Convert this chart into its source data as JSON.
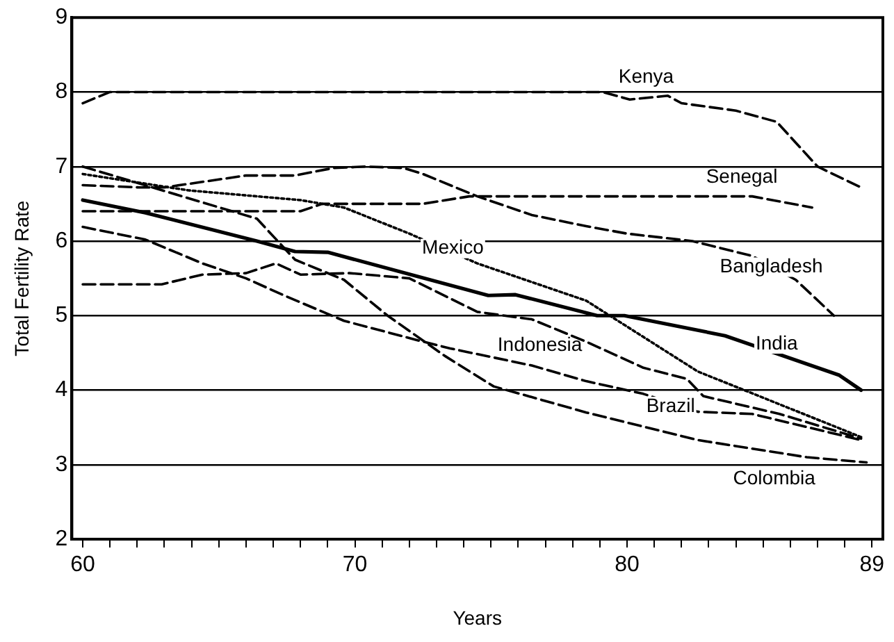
{
  "chart_data": {
    "type": "line",
    "xlabel": "Years",
    "ylabel": "Total Fertility Rate",
    "xlim": [
      59.6,
      89.4
    ],
    "ylim": [
      2,
      9
    ],
    "xticks": [
      60,
      {
        "value": 61,
        "label": null
      },
      {
        "value": 62,
        "label": null
      },
      {
        "value": 63,
        "label": null
      },
      {
        "value": 64,
        "label": null
      },
      {
        "value": 65,
        "label": null
      },
      {
        "value": 66,
        "label": null
      },
      {
        "value": 67,
        "label": null
      },
      {
        "value": 68,
        "label": null
      },
      {
        "value": 69,
        "label": null
      },
      70,
      {
        "value": 71,
        "label": null
      },
      {
        "value": 72,
        "label": null
      },
      {
        "value": 73,
        "label": null
      },
      {
        "value": 74,
        "label": null
      },
      {
        "value": 75,
        "label": null
      },
      {
        "value": 76,
        "label": null
      },
      {
        "value": 77,
        "label": null
      },
      {
        "value": 78,
        "label": null
      },
      {
        "value": 79,
        "label": null
      },
      80,
      {
        "value": 81,
        "label": null
      },
      {
        "value": 82,
        "label": null
      },
      {
        "value": 83,
        "label": null
      },
      {
        "value": 84,
        "label": null
      },
      {
        "value": 85,
        "label": null
      },
      {
        "value": 86,
        "label": null
      },
      {
        "value": 87,
        "label": null
      },
      {
        "value": 88,
        "label": null
      },
      89
    ],
    "yticks": [
      2,
      3,
      4,
      5,
      6,
      7,
      8,
      9
    ],
    "grid": "y",
    "legend": false,
    "marker": "none",
    "series": [
      {
        "color": "#000000",
        "line_style": "dashed",
        "x": [
          60,
          61,
          70,
          75,
          79.1,
          80.1,
          81.5,
          82,
          84,
          85.5,
          87,
          88.6
        ],
        "values": [
          7.85,
          8.0,
          8.0,
          8.0,
          8.0,
          7.9,
          7.95,
          7.85,
          7.75,
          7.6,
          7.0,
          6.72
        ]
      },
      {
        "color": "#000000",
        "line_style": "dashed",
        "x": [
          60,
          68,
          68.8,
          72.5,
          74.2,
          84.6,
          86.8
        ],
        "values": [
          6.4,
          6.4,
          6.5,
          6.5,
          6.6,
          6.6,
          6.45
        ]
      },
      {
        "color": "#000000",
        "line_style": "dashed",
        "x": [
          60,
          62.1,
          63,
          64.5,
          66,
          67.8,
          69.2,
          70.4,
          71.8,
          72.5,
          74.5,
          76.5,
          78.5,
          80,
          82.4,
          84.6,
          86.2,
          87.6
        ],
        "values": [
          6.75,
          6.72,
          6.72,
          6.8,
          6.88,
          6.88,
          6.98,
          7.0,
          6.98,
          6.9,
          6.6,
          6.35,
          6.2,
          6.1,
          6.0,
          5.8,
          5.48,
          5.0
        ]
      },
      {
        "color": "#000000",
        "line_style": "solid",
        "x": [
          60,
          62.3,
          66.4,
          67.8,
          69,
          74.9,
          75.9,
          78.9,
          79.9,
          83.6,
          87.8,
          88.6
        ],
        "values": [
          6.55,
          6.38,
          6.0,
          5.86,
          5.85,
          5.27,
          5.28,
          5.0,
          5.0,
          4.73,
          4.2,
          4.0
        ]
      },
      {
        "color": "#000000",
        "line_style": "dotted",
        "x": [
          60,
          63.9,
          68,
          69.6,
          72,
          74.5,
          78.5,
          82.6,
          88.6
        ],
        "values": [
          6.9,
          6.68,
          6.55,
          6.45,
          6.1,
          5.7,
          5.2,
          4.25,
          3.37
        ]
      },
      {
        "color": "#000000",
        "line_style": "dashed",
        "x": [
          60,
          66.4,
          67.8,
          69.6,
          71.2,
          73.3,
          75.1,
          78.5,
          82.6,
          86.6,
          88.8
        ],
        "values": [
          7.0,
          6.3,
          5.75,
          5.48,
          5.0,
          4.46,
          4.05,
          3.7,
          3.33,
          3.1,
          3.03
        ]
      },
      {
        "color": "#000000",
        "line_style": "dashed",
        "x": [
          60,
          62.3,
          64.4,
          66,
          67.4,
          69.6,
          72.4,
          73.5,
          76.5,
          78.5,
          80.6,
          82.6,
          84.6,
          88.6
        ],
        "values": [
          6.19,
          6.02,
          5.7,
          5.5,
          5.27,
          4.93,
          4.66,
          4.56,
          4.33,
          4.12,
          3.95,
          3.71,
          3.68,
          3.33
        ]
      },
      {
        "color": "#000000",
        "line_style": "dashed",
        "x": [
          60,
          62.9,
          64.4,
          66,
          67.1,
          68,
          69.8,
          72,
          74.5,
          76.5,
          78.5,
          80.6,
          82.2,
          82.8,
          85.6,
          88.6
        ],
        "values": [
          5.42,
          5.42,
          5.55,
          5.57,
          5.7,
          5.55,
          5.57,
          5.5,
          5.05,
          4.95,
          4.65,
          4.3,
          4.15,
          3.92,
          3.68,
          3.35
        ]
      }
    ],
    "annotations": [
      {
        "text": "Kenya",
        "x": 80.7,
        "y": 8.2
      },
      "Senegal",
      {
        "text": "Bangladesh",
        "x": 85.3,
        "y": 5.65
      },
      {
        "text": "Mexico",
        "x": 73.6,
        "y": 5.9
      },
      {
        "text": "India",
        "x": 85.5,
        "y": 4.62
      },
      "Indonesia",
      {
        "text": "Brazil",
        "x": 81.6,
        "y": 3.78
      },
      "Colombia"
    ]
  }
}
